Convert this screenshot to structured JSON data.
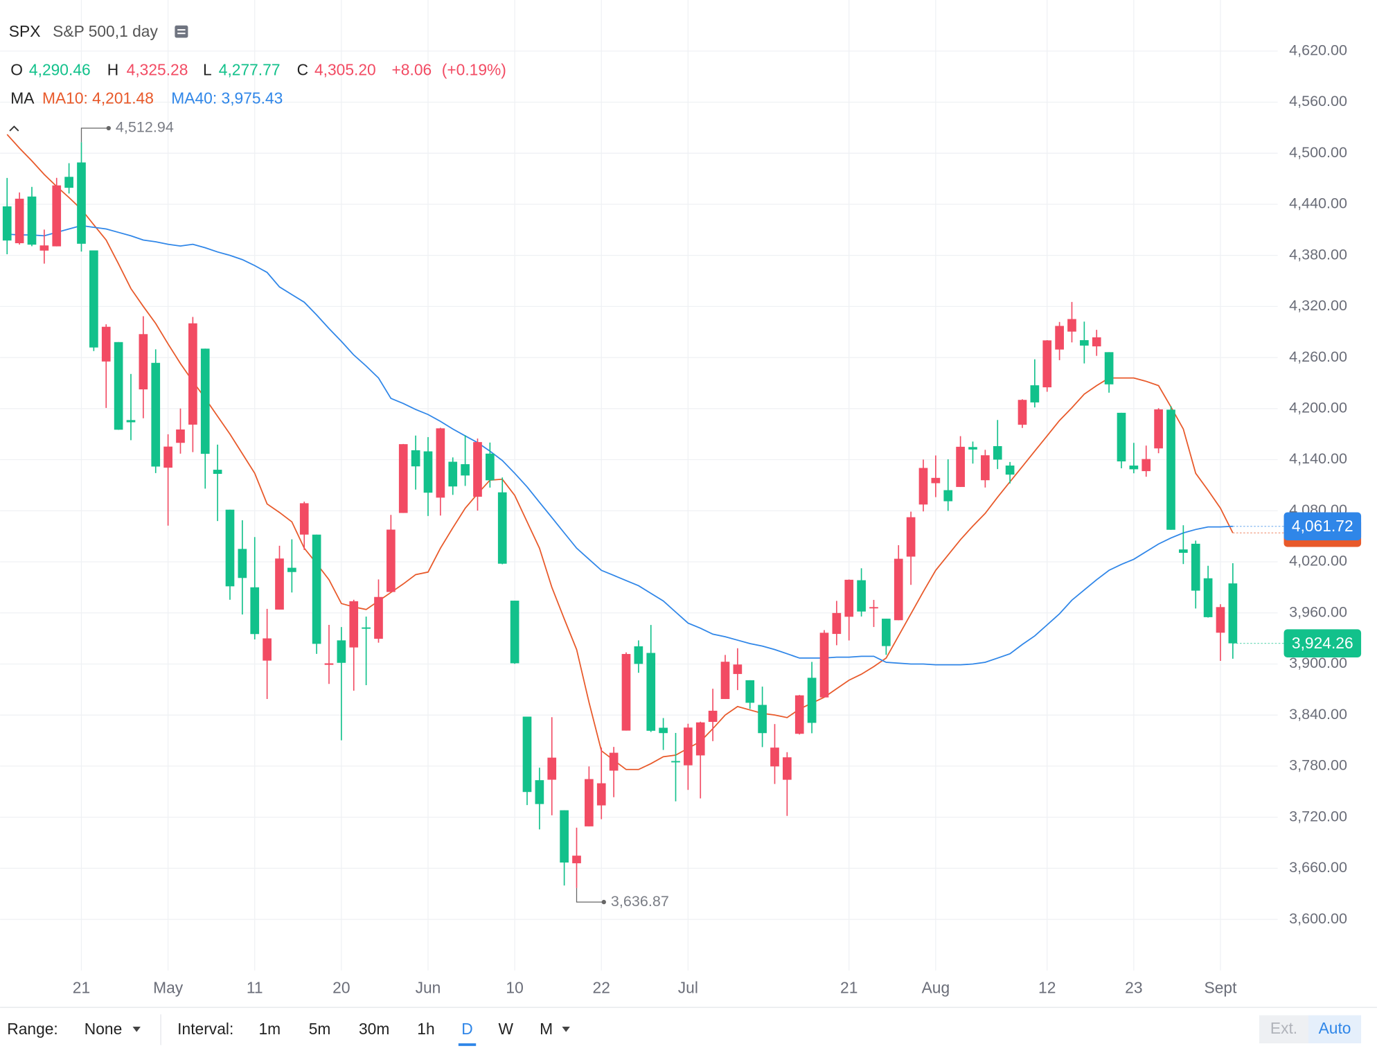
{
  "legend": {
    "symbol": "SPX",
    "name": "S&P 500,1 day",
    "ohlc": [
      {
        "key": "O",
        "value": "4,290.46",
        "tone": "down"
      },
      {
        "key": "H",
        "value": "4,325.28",
        "tone": "up"
      },
      {
        "key": "L",
        "value": "4,277.77",
        "tone": "down"
      },
      {
        "key": "C",
        "value": "4,305.20",
        "tone": "up"
      }
    ],
    "change": "+8.06",
    "change_pct": "(+0.19%)",
    "ma_title": "MA",
    "ma": [
      "MA10: 4,201.48",
      "MA40: 3,975.43"
    ]
  },
  "chart_data": {
    "type": "candlestick",
    "categories": [
      null,
      null,
      null,
      null,
      null,
      null,
      "21",
      null,
      null,
      null,
      null,
      null,
      null,
      "May",
      null,
      null,
      null,
      null,
      null,
      null,
      "11",
      null,
      null,
      null,
      null,
      null,
      null,
      "20",
      null,
      null,
      null,
      null,
      null,
      null,
      "Jun",
      null,
      null,
      null,
      null,
      null,
      null,
      "10",
      null,
      null,
      null,
      null,
      null,
      null,
      "22",
      null,
      null,
      null,
      null,
      null,
      null,
      "Jul",
      null,
      null,
      null,
      null,
      null,
      null,
      null,
      null,
      null,
      null,
      null,
      null,
      "21",
      null,
      null,
      null,
      null,
      null,
      null,
      "Aug",
      null,
      null,
      null,
      null,
      null,
      null,
      null,
      null,
      "12",
      null,
      null,
      null,
      null,
      null,
      null,
      "23",
      null,
      null,
      null,
      null,
      null,
      null,
      "Sept",
      null
    ],
    "open": [
      4437.59,
      4394.3,
      4449.12,
      4385.63,
      4390.63,
      4472.26,
      4489.17,
      4385.83,
      4255.34,
      4278.14,
      4186.52,
      4222.58,
      4253.75,
      4130.61,
      4159.78,
      4181.18,
      4270.43,
      4128.17,
      4081.27,
      4035.18,
      3990.08,
      3903.95,
      3963.9,
      4013.02,
      4052.0,
      4051.98,
      3899.0,
      3927.76,
      3919.42,
      3942.94,
      3929.59,
      3984.6,
      4077.43,
      4151.09,
      4149.78,
      4095.41,
      4137.57,
      4134.72,
      4096.47,
      4147.12,
      4101.65,
      3974.39,
      3838.15,
      3763.52,
      3764.05,
      3728.18,
      3665.9,
      3709.25,
      3733.89,
      3774.71,
      3821.75,
      3920.76,
      3913.0,
      3825.09,
      3785.99,
      3781.0,
      3792.61,
      3831.98,
      3858.85,
      3888.26,
      3880.94,
      3851.95,
      3779.67,
      3763.99,
      3818.0,
      3883.79,
      3860.73,
      3935.32,
      3955.47,
      3998.4,
      3965.72,
      3953.22,
      3951.43,
      4026.13,
      4087.33,
      4112.38,
      4104.21,
      4107.96,
      4154.85,
      4115.87,
      4155.93,
      4133.11,
      4181.02,
      4227.4,
      4225.02,
      4269.37,
      4290.46,
      4280.4,
      4273.13,
      4266.31,
      4195.08,
      4133.09,
      4126.55,
      4153.26,
      4198.74,
      4034.58,
      4041.25,
      4000.67,
      3936.73,
      3994.66
    ],
    "high": [
      4471.0,
      4453.92,
      4460.46,
      4410.31,
      4471.03,
      4488.29,
      4512.94,
      4385.83,
      4299.02,
      4278.14,
      4240.71,
      4308.45,
      4269.68,
      4169.81,
      4200.1,
      4307.66,
      4270.43,
      4157.69,
      4081.27,
      4068.82,
      4049.09,
      3964.8,
      4038.88,
      4046.46,
      4090.72,
      4051.98,
      3945.96,
      3943.42,
      3975.45,
      3955.68,
      3999.33,
      4075.14,
      4158.49,
      4168.34,
      4166.54,
      4177.51,
      4142.67,
      4168.78,
      4164.86,
      4160.14,
      4119.1,
      3974.39,
      3838.15,
      3778.18,
      3837.56,
      3728.18,
      3707.71,
      3779.65,
      3801.79,
      3802.58,
      3913.65,
      3927.72,
      3945.86,
      3836.5,
      3818.99,
      3829.82,
      3832.19,
      3870.91,
      3910.63,
      3918.5,
      3880.94,
      3873.41,
      3829.44,
      3796.41,
      3863.62,
      3902.44,
      3939.81,
      3974.13,
      3999.29,
      4012.44,
      3975.3,
      3953.22,
      4039.56,
      4078.95,
      4140.15,
      4144.95,
      4140.47,
      4167.66,
      4161.29,
      4151.58,
      4186.62,
      4137.3,
      4211.03,
      4257.91,
      4280.47,
      4301.79,
      4325.28,
      4302.18,
      4292.53,
      4266.31,
      4195.08,
      4159.77,
      4156.56,
      4200.54,
      4203.04,
      4062.99,
      4044.98,
      4015.37,
      3970.23,
      4018.43
    ],
    "low": [
      4381.34,
      4392.7,
      4390.77,
      4370.3,
      4390.63,
      4452.68,
      4384.47,
      4267.62,
      4200.82,
      4175.04,
      4162.9,
      4188.63,
      4124.28,
      4062.51,
      4147.08,
      4148.91,
      4106.01,
      4067.91,
      3975.48,
      3958.17,
      3928.82,
      3858.87,
      3963.9,
      3983.99,
      4033.93,
      3911.91,
      3876.58,
      3810.32,
      3868.59,
      3875.13,
      3925.03,
      3984.6,
      4077.43,
      4104.88,
      4073.85,
      4074.37,
      4098.67,
      4109.18,
      4080.19,
      4107.2,
      4017.17,
      3900.16,
      3734.3,
      3705.68,
      3722.3,
      3639.77,
      3636.87,
      3709.25,
      3717.69,
      3743.52,
      3821.75,
      3889.66,
      3820.14,
      3799.02,
      3738.67,
      3752.1,
      3742.06,
      3809.37,
      3858.85,
      3869.34,
      3847.22,
      3802.36,
      3759.07,
      3721.56,
      3817.18,
      3818.63,
      3860.73,
      3922.03,
      3927.64,
      3955.77,
      3943.46,
      3910.74,
      3951.43,
      3992.97,
      4079.22,
      4096.02,
      4079.81,
      4107.96,
      4135.42,
      4107.31,
      4128.97,
      4112.09,
      4177.26,
      4201.41,
      4219.78,
      4256.9,
      4277.77,
      4253.08,
      4261.98,
      4218.7,
      4129.86,
      4124.03,
      4119.97,
      4147.59,
      4057.66,
      4017.42,
      3965.21,
      3954.53,
      3903.65,
      3906.21
    ],
    "close": [
      4397.45,
      4446.59,
      4392.59,
      4391.69,
      4462.21,
      4459.45,
      4393.66,
      4271.78,
      4296.12,
      4175.2,
      4183.96,
      4287.5,
      4131.93,
      4155.38,
      4175.48,
      4300.17,
      4146.87,
      4123.34,
      3991.24,
      4001.05,
      3935.18,
      3930.08,
      4023.89,
      4008.01,
      4088.85,
      3923.68,
      3900.79,
      3901.36,
      3973.75,
      3941.48,
      3978.73,
      4057.84,
      4158.24,
      4132.15,
      4101.23,
      4176.82,
      4108.54,
      4121.43,
      4160.68,
      4115.77,
      4017.82,
      3900.86,
      3749.63,
      3735.48,
      3789.99,
      3666.77,
      3674.84,
      3764.79,
      3759.89,
      3795.73,
      3911.74,
      3900.11,
      3821.55,
      3818.83,
      3785.38,
      3825.33,
      3831.39,
      3845.08,
      3902.62,
      3899.38,
      3854.43,
      3818.8,
      3801.78,
      3790.38,
      3863.16,
      3830.85,
      3936.69,
      3959.9,
      3998.95,
      3961.63,
      3966.84,
      3921.05,
      4023.61,
      4072.43,
      4130.29,
      4118.63,
      4091.19,
      4155.17,
      4151.94,
      4145.19,
      4140.06,
      4122.47,
      4210.24,
      4207.27,
      4280.15,
      4297.14,
      4305.2,
      4274.04,
      4283.74,
      4228.48,
      4137.99,
      4128.73,
      4140.77,
      4199.12,
      4057.66,
      4030.61,
      3986.16,
      3955.0,
      3966.85,
      3924.26
    ],
    "up_color": "#f24b63",
    "down_color": "#12c18b",
    "series": [
      {
        "name": "MA10",
        "color": "#e8592a",
        "values": [
          4522,
          4506,
          4491,
          4475,
          4461,
          4448,
          4434,
          4416,
          4398,
          4370,
          4341,
          4320,
          4300,
          4276,
          4253,
          4232,
          4212,
          4191,
          4170,
          4147,
          4124,
          4088,
          4078,
          4067,
          4036,
          4018,
          3999,
          3971,
          3967,
          3964,
          3974,
          3984,
          3994,
          4005,
          4008,
          4036,
          4060,
          4083,
          4100,
          4116,
          4117,
          4098,
          4067,
          4036,
          3990,
          3953,
          3917,
          3855,
          3798,
          3787,
          3776,
          3776,
          3783,
          3791,
          3793,
          3801,
          3809,
          3824,
          3840,
          3850,
          3846,
          3842,
          3840,
          3837,
          3847,
          3854,
          3861,
          3871,
          3881,
          3888,
          3897,
          3907,
          3933,
          3959,
          3985,
          4010,
          4028,
          4046,
          4062,
          4077,
          4096,
          4114,
          4132,
          4150,
          4168,
          4186,
          4201,
          4217,
          4227,
          4236,
          4236,
          4236,
          4232,
          4227,
          4202,
          4176,
          4124,
          4104,
          4083,
          4054
        ]
      },
      {
        "name": "MA40",
        "color": "#2f86e8",
        "values": [
          4405,
          4404,
          4404,
          4403,
          4407,
          4411,
          4415,
          4413,
          4411,
          4407,
          4403,
          4398,
          4396,
          4393,
          4391,
          4393,
          4389,
          4384,
          4380,
          4375,
          4368,
          4360,
          4343,
          4334,
          4325,
          4310,
          4294,
          4279,
          4263,
          4250,
          4236,
          4212,
          4206,
          4199,
          4193,
          4185,
          4176,
          4168,
          4160,
          4150,
          4139,
          4124,
          4108,
          4090,
          4072,
          4054,
          4036,
          4023,
          4010,
          4004,
          3998,
          3992,
          3983,
          3974,
          3961,
          3948,
          3942,
          3935,
          3932,
          3928,
          3924,
          3921,
          3917,
          3912,
          3907,
          3907,
          3907,
          3908,
          3908,
          3909,
          3909,
          3902,
          3901,
          3900,
          3900,
          3899,
          3899,
          3899,
          3900,
          3902,
          3907,
          3912,
          3923,
          3933,
          3946,
          3959,
          3975,
          3987,
          3999,
          4010,
          4017,
          4023,
          4032,
          4041,
          4048,
          4054,
          4058,
          4061,
          4061,
          4061.72
        ]
      }
    ],
    "ylim": [
      3540,
      4680
    ],
    "yticks": [
      {
        "value": 3600,
        "label": "3,600.00"
      },
      {
        "value": 3660,
        "label": "3,660.00"
      },
      {
        "value": 3720,
        "label": "3,720.00"
      },
      {
        "value": 3780,
        "label": "3,780.00"
      },
      {
        "value": 3840,
        "label": "3,840.00"
      },
      {
        "value": 3900,
        "label": "3,900.00"
      },
      {
        "value": 3960,
        "label": "3,960.00"
      },
      {
        "value": 4020,
        "label": "4,020.00"
      },
      {
        "value": 4080,
        "label": "4,080.00"
      },
      {
        "value": 4140,
        "label": "4,140.00"
      },
      {
        "value": 4200,
        "label": "4,200.00"
      },
      {
        "value": 4260,
        "label": "4,260.00"
      },
      {
        "value": 4320,
        "label": "4,320.00"
      },
      {
        "value": 4380,
        "label": "4,380.00"
      },
      {
        "value": 4440,
        "label": "4,440.00"
      },
      {
        "value": 4500,
        "label": "4,500.00"
      },
      {
        "value": 4560,
        "label": "4,560.00"
      },
      {
        "value": 4620,
        "label": "4,620.00"
      }
    ],
    "grid": true,
    "high_label": "4,512.94",
    "low_label": "3,636.87",
    "price_tags": [
      {
        "value": 4061.72,
        "label": "4,061.72",
        "color": "#2f86e8"
      },
      {
        "value": 3924.26,
        "label": "3,924.26",
        "color": "#12c18b"
      }
    ]
  },
  "toolbar": {
    "range_label": "Range:",
    "range_value": "None",
    "interval_label": "Interval:",
    "intervals": [
      {
        "label": "1m"
      },
      {
        "label": "5m"
      },
      {
        "label": "30m"
      },
      {
        "label": "1h"
      },
      {
        "label": "D",
        "active": true
      },
      {
        "label": "W"
      },
      {
        "label": "M"
      }
    ],
    "ext": "Ext.",
    "auto": "Auto"
  }
}
